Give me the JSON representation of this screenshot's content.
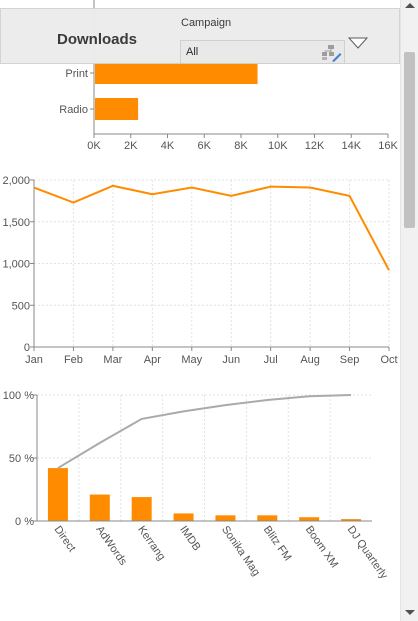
{
  "header": {
    "title": "Downloads",
    "filter_label": "Campaign",
    "filter_value": "All",
    "hierarchy_icon": "hierarchy-filter-icon",
    "dropdown_icon": "triangle-down-icon"
  },
  "colors": {
    "accent": "#ff8c00",
    "cumulative": "#aaaaaa",
    "grid": "#e2e2e2",
    "axis": "#888888"
  },
  "chart_data": [
    {
      "type": "bar",
      "orientation": "horizontal",
      "categories": [
        "Print",
        "Radio"
      ],
      "values": [
        8900,
        2400
      ],
      "xlim": [
        0,
        16000
      ],
      "tick_labels": [
        "0K",
        "2K",
        "4K",
        "6K",
        "8K",
        "10K",
        "12K",
        "14K",
        "16K"
      ],
      "grid": false
    },
    {
      "type": "line",
      "x": [
        "Jan",
        "Feb",
        "Mar",
        "Apr",
        "May",
        "Jun",
        "Jul",
        "Aug",
        "Sep",
        "Oct"
      ],
      "values": [
        1910,
        1730,
        1930,
        1830,
        1910,
        1810,
        1920,
        1910,
        1810,
        920
      ],
      "ylim": [
        0,
        2000
      ],
      "y_tick_labels": [
        "0",
        "500",
        "1,000",
        "1,500",
        "2,000"
      ],
      "grid": true
    },
    {
      "type": "bar",
      "subtype": "pareto",
      "categories": [
        "Direct",
        "AdWords",
        "Kerrang",
        "IMDB",
        "Sonika Mag",
        "Blitz FM",
        "Boom XM",
        "DJ Quarterly"
      ],
      "values": [
        42,
        21,
        19,
        6,
        4.5,
        4.5,
        3,
        1.5
      ],
      "cumulative": [
        42,
        62,
        81,
        87,
        92,
        96,
        99,
        100
      ],
      "ylim": [
        0,
        100
      ],
      "y_tick_labels": [
        "0 %",
        "50 %",
        "100 %"
      ],
      "grid": true
    }
  ]
}
